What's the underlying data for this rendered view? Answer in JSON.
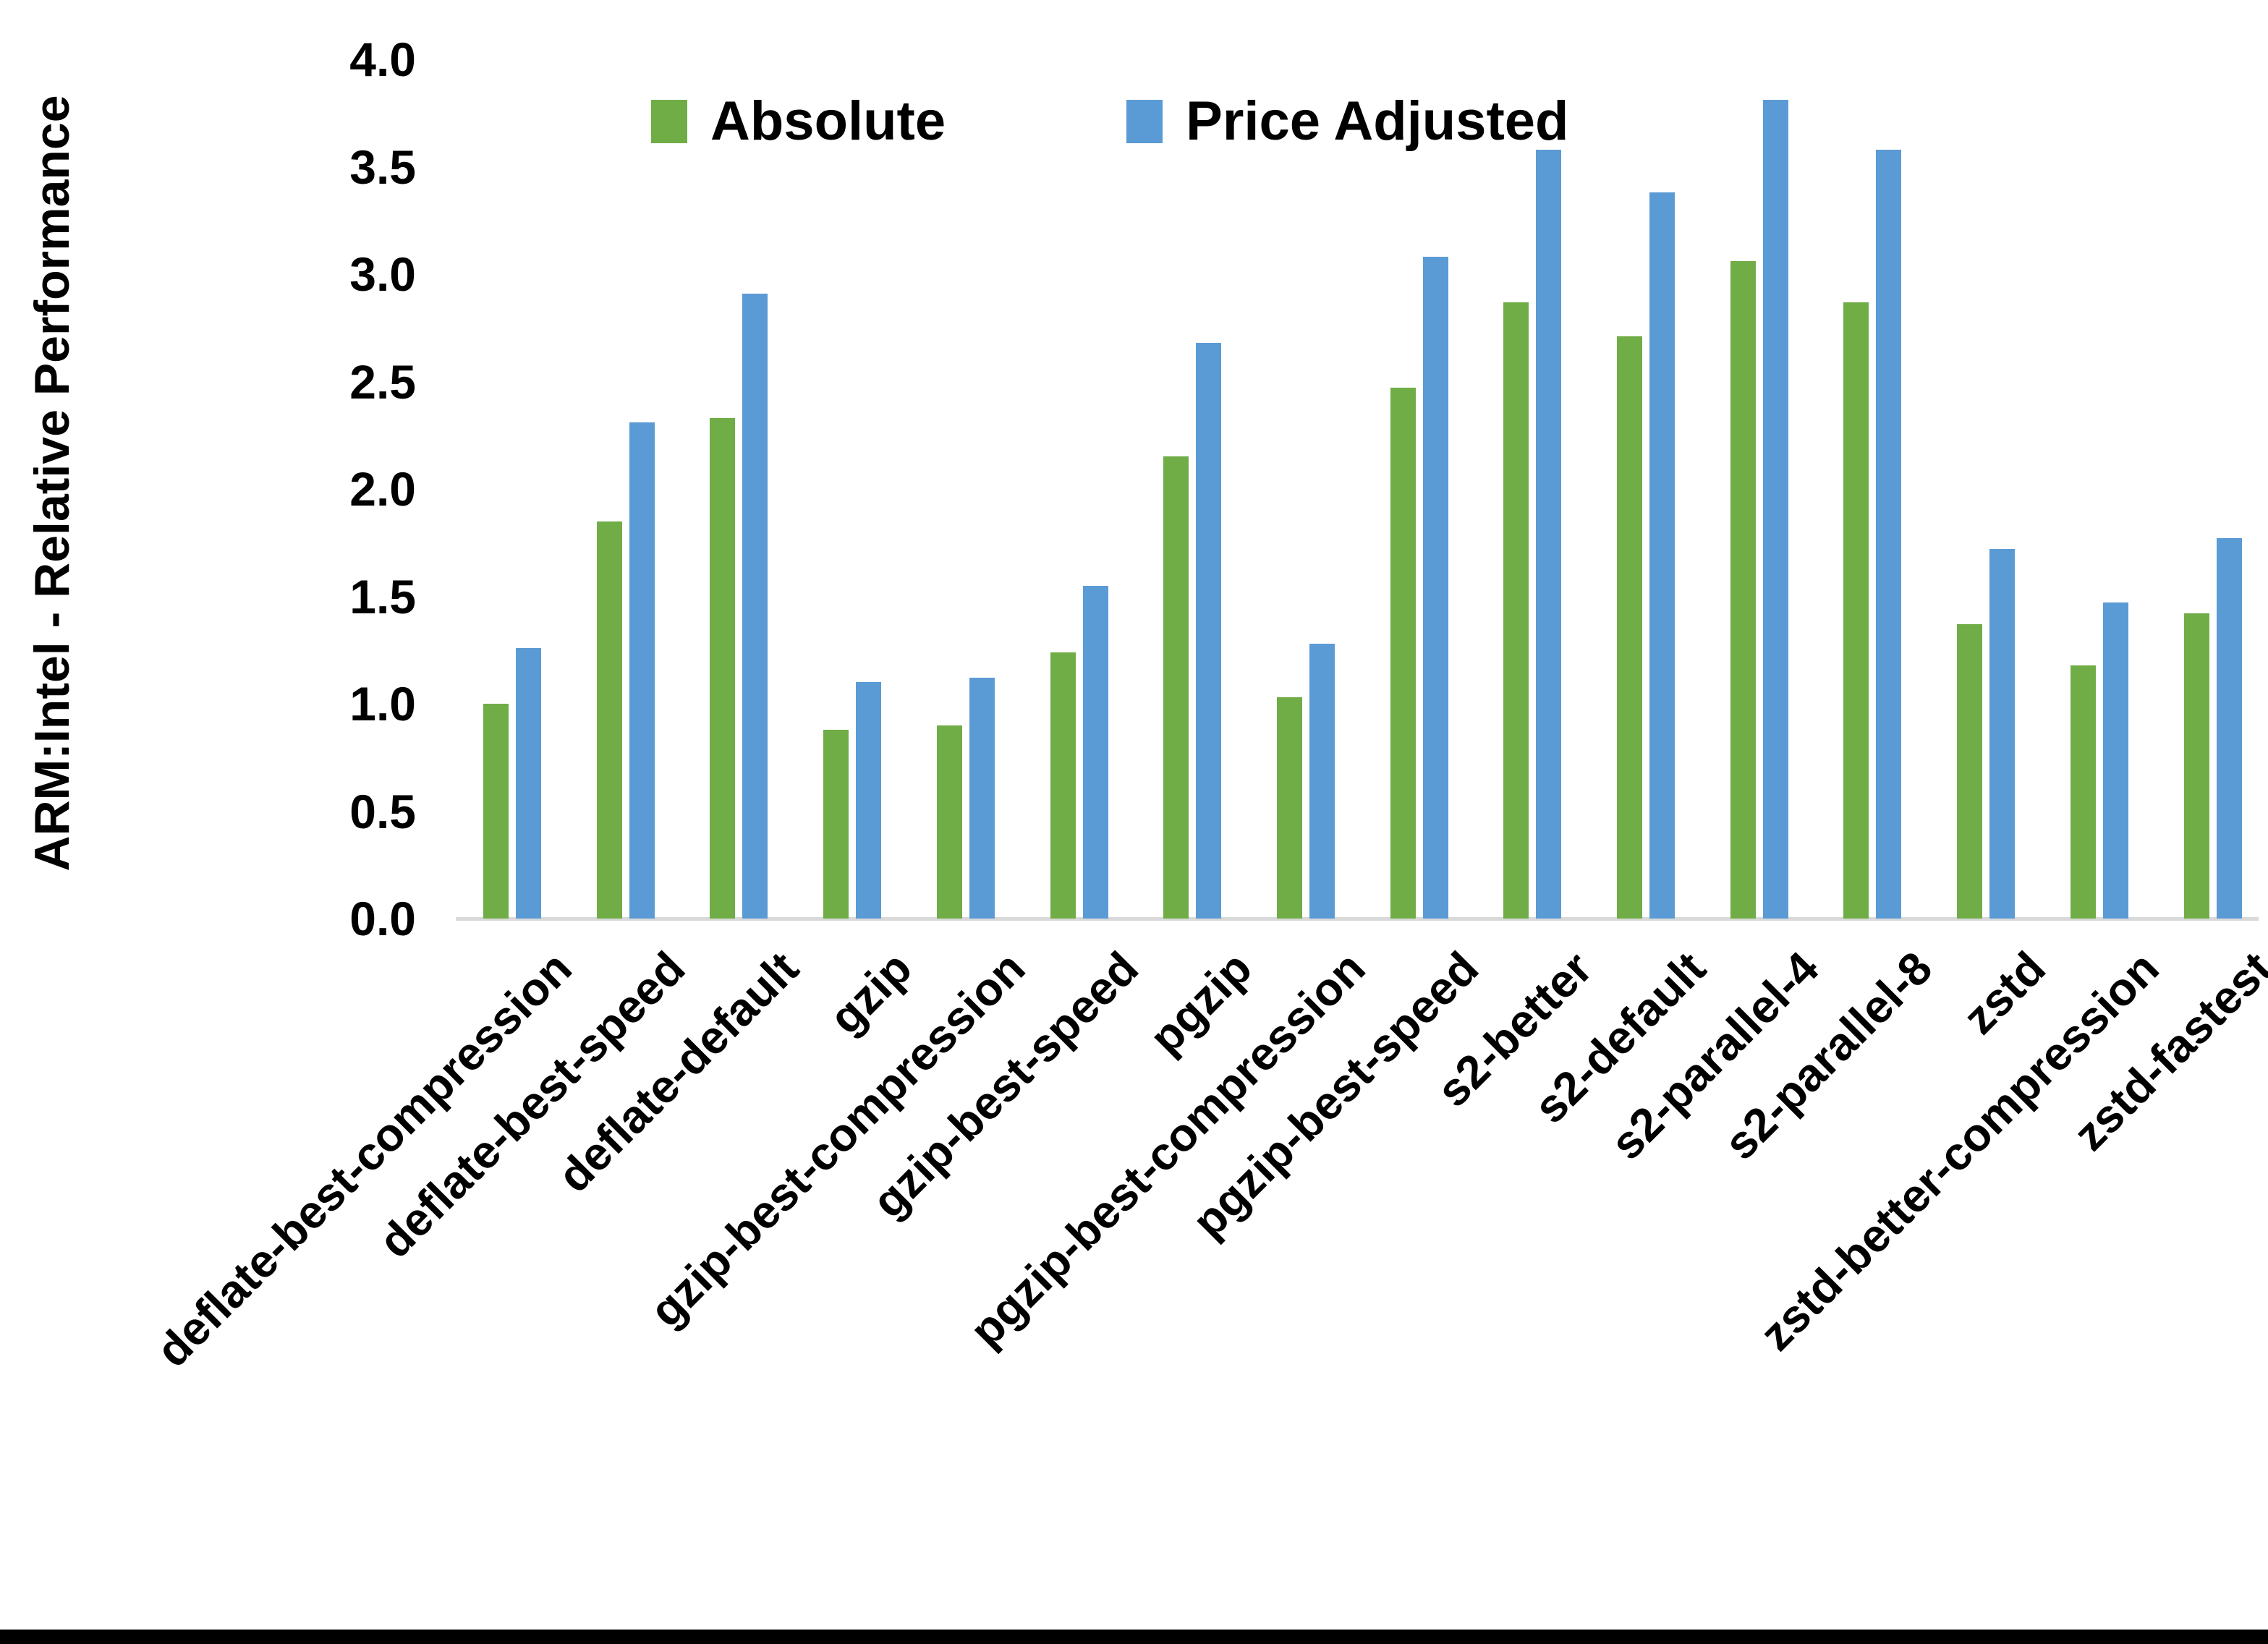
{
  "chart_data": {
    "type": "bar",
    "title": "",
    "xlabel": "",
    "ylabel": "ARM:Intel - Relative Performance",
    "ylim": [
      0.0,
      4.0
    ],
    "ytick_step": 0.5,
    "ytick_decimals": 1,
    "grid": false,
    "legend_position": "top-center",
    "axis_line_color": "#d9d9d9",
    "text_color": "#000000",
    "background_color": "#ffffff",
    "categories": [
      "deflate-best-compression",
      "deflate-best-speed",
      "deflate-default",
      "gzip",
      "gzip-best-compression",
      "gzip-best-speed",
      "pgzip",
      "pgzip-best-compression",
      "pgzip-best-speed",
      "s2-better",
      "s2-default",
      "s2-parallel-4",
      "s2-parallel-8",
      "zstd",
      "zstd-better-compression",
      "zstd-fastest"
    ],
    "series": [
      {
        "name": "Absolute",
        "color": "#70AD47",
        "values": [
          1.0,
          1.85,
          2.33,
          0.88,
          0.9,
          1.24,
          2.15,
          1.03,
          2.47,
          2.87,
          2.71,
          3.06,
          2.87,
          1.37,
          1.18,
          1.42
        ]
      },
      {
        "name": "Price Adjusted",
        "color": "#5B9BD5",
        "values": [
          1.26,
          2.31,
          2.91,
          1.1,
          1.12,
          1.55,
          2.68,
          1.28,
          3.08,
          3.58,
          3.38,
          3.81,
          3.58,
          1.72,
          1.47,
          1.77
        ]
      }
    ]
  }
}
